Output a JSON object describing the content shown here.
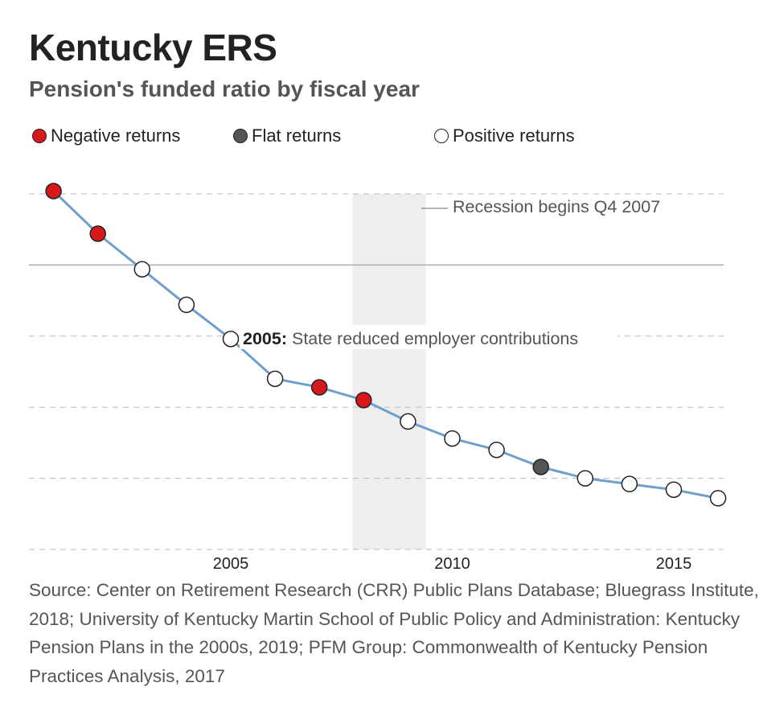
{
  "header": {
    "title": "Kentucky ERS",
    "subtitle": "Pension's funded ratio by fiscal year"
  },
  "legend": [
    {
      "key": "negative",
      "label": "Negative returns",
      "color": "#d7191c"
    },
    {
      "key": "flat",
      "label": "Flat returns",
      "color": "#555555"
    },
    {
      "key": "positive",
      "label": "Positive returns",
      "color": "#ffffff"
    }
  ],
  "chart_data": {
    "type": "line",
    "title": "Kentucky ERS",
    "subtitle": "Pension's funded ratio by fiscal year",
    "xlabel": "",
    "ylabel": "",
    "xlim": [
      2000,
      2016.5
    ],
    "ylim": [
      0,
      125
    ],
    "grid": true,
    "legend_position": "top",
    "reference_line": 100,
    "line_color": "#6f9fcc",
    "x_tick_labels": [
      "2005",
      "2010",
      "2015"
    ],
    "x_ticks": [
      2005,
      2010,
      2015
    ],
    "y_gridlines": [
      0,
      25,
      50,
      75,
      100,
      125
    ],
    "series": [
      {
        "x": [
          2001,
          2002,
          2003,
          2004,
          2005,
          2006,
          2007,
          2008,
          2009,
          2010,
          2011,
          2012,
          2013,
          2014,
          2015,
          2016
        ],
        "y": [
          126,
          111,
          98.5,
          86,
          74,
          60,
          57,
          52.5,
          45,
          39,
          35,
          29,
          25,
          23,
          21,
          18
        ],
        "returns": [
          "negative",
          "negative",
          "positive",
          "positive",
          "positive",
          "positive",
          "negative",
          "negative",
          "positive",
          "positive",
          "positive",
          "flat",
          "positive",
          "positive",
          "positive",
          "positive"
        ]
      }
    ],
    "recession_band": {
      "start": 2007.75,
      "end": 2009.4,
      "color": "#eeeeee"
    },
    "annotations": [
      {
        "id": "recession",
        "text": "Recession begins Q4 2007"
      },
      {
        "id": "contributions",
        "year_label": "2005:",
        "text": " State reduced employer contributions"
      }
    ]
  },
  "source": {
    "lines": [
      "Source: Center on Retirement Research (CRR) Public Plans Database; Bluegrass Institute,",
      "2018; University of Kentucky Martin School of Public Policy and Administration: Kentucky",
      "Pension Plans in the 2000s, 2019; PFM Group: Commonwealth of Kentucky Pension",
      "Practices Analysis, 2017"
    ]
  }
}
